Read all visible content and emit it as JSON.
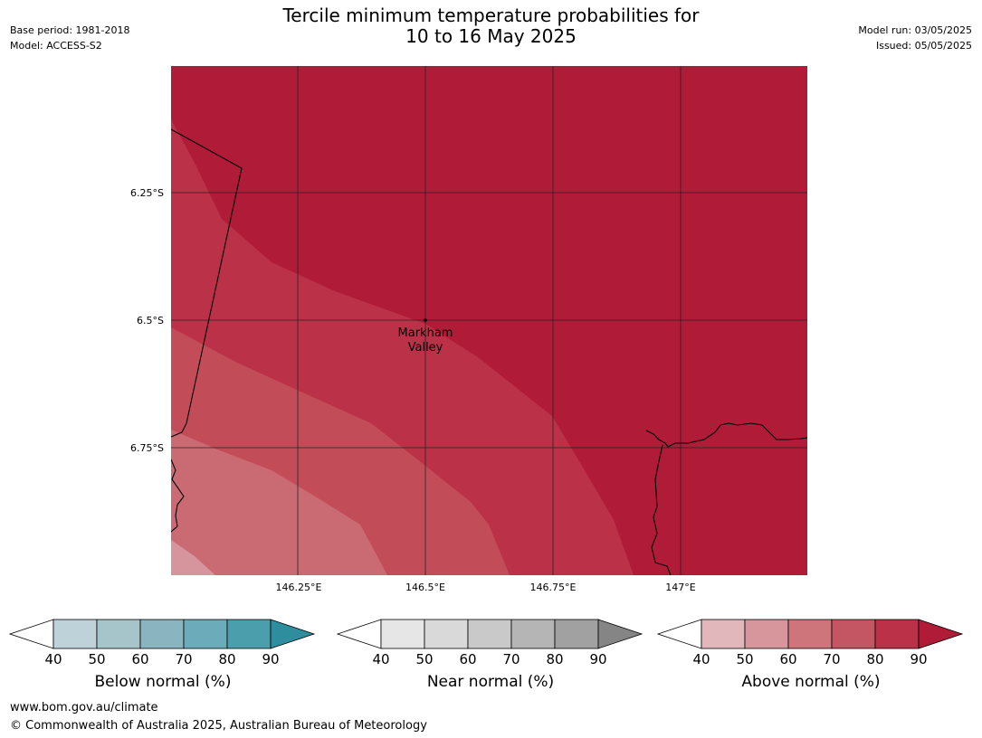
{
  "header": {
    "title_line1": "Tercile minimum temperature probabilities for",
    "title_line2": "10 to 16 May 2025",
    "base_period": "Base period: 1981-2018",
    "model": "Model: ACCESS-S2",
    "model_run": "Model run: 03/05/2025",
    "issued": "Issued: 05/05/2025"
  },
  "map": {
    "lat_labels": [
      "6.25°S",
      "6.5°S",
      "6.75°S"
    ],
    "lon_labels": [
      "146.25°E",
      "146.5°E",
      "146.75°E",
      "147°E"
    ],
    "place_line1": "Markham",
    "place_line2": "Valley",
    "colors": {
      "band_90": "#b01c38",
      "band_80": "#bb3248",
      "band_70": "#c24d58",
      "band_60": "#ca6b74",
      "band_50": "#d6959c"
    }
  },
  "legends": [
    {
      "title": "Below normal (%)",
      "ticks": [
        "40",
        "50",
        "60",
        "70",
        "80",
        "90"
      ],
      "colors": [
        "#bed3d9",
        "#a6c5cb",
        "#89b4c0",
        "#6babba",
        "#4b9fac"
      ],
      "over_color": "#2e8e9e"
    },
    {
      "title": "Near normal (%)",
      "ticks": [
        "40",
        "50",
        "60",
        "70",
        "80",
        "90"
      ],
      "colors": [
        "#e6e6e6",
        "#d9d9d9",
        "#c9c9c9",
        "#b5b5b5",
        "#a1a1a1"
      ],
      "over_color": "#858585"
    },
    {
      "title": "Above normal (%)",
      "ticks": [
        "40",
        "50",
        "60",
        "70",
        "80",
        "90"
      ],
      "colors": [
        "#e2b7bc",
        "#d6969c",
        "#cd757b",
        "#c45562",
        "#bb3248"
      ],
      "over_color": "#b01c38"
    }
  ],
  "footer": {
    "url": "www.bom.gov.au/climate",
    "copyright": "© Commonwealth of Australia 2025, Australian Bureau of Meteorology"
  }
}
